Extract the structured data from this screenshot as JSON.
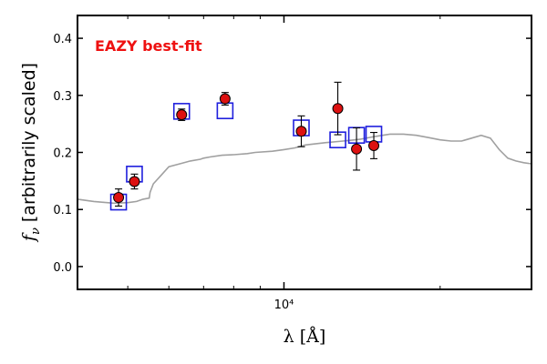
{
  "chart_data": {
    "type": "scatter",
    "x_scale": "log",
    "xlim": [
      4000,
      30000
    ],
    "ylim": [
      -0.04,
      0.44
    ],
    "x_tick_labels": [
      {
        "value": 10000,
        "label": "10⁴"
      }
    ],
    "y_tick_labels": [
      {
        "value": 0.0,
        "label": "0.0"
      },
      {
        "value": 0.1,
        "label": "0.1"
      },
      {
        "value": 0.2,
        "label": "0.2"
      },
      {
        "value": 0.3,
        "label": "0.3"
      },
      {
        "value": 0.4,
        "label": "0.4"
      }
    ],
    "xlabel": "λ [Å]",
    "ylabel_symbol": "f",
    "ylabel_subscript": "ν",
    "ylabel_text": " [arbitrarily scaled]",
    "annotation": {
      "text": "EAZY best-fit",
      "color": "#ee1111"
    },
    "grid": false,
    "series": [
      {
        "kind": "model_spectrum",
        "color": "#a0a0a0",
        "x": [
          4000,
          4300,
          4700,
          5000,
          5200,
          5350,
          5500,
          5520,
          5600,
          5800,
          6000,
          6300,
          6600,
          6900,
          7000,
          7200,
          7600,
          8000,
          8500,
          8800,
          9500,
          10000,
          10500,
          11000,
          12000,
          13000,
          14000,
          15000,
          16000,
          17000,
          18000,
          19000,
          20000,
          21000,
          22000,
          23000,
          24000,
          25000,
          26000,
          27000,
          28000,
          29000,
          30000
        ],
        "y": [
          0.118,
          0.114,
          0.111,
          0.112,
          0.114,
          0.118,
          0.12,
          0.13,
          0.145,
          0.16,
          0.175,
          0.18,
          0.185,
          0.188,
          0.19,
          0.192,
          0.195,
          0.196,
          0.198,
          0.2,
          0.202,
          0.205,
          0.208,
          0.213,
          0.217,
          0.22,
          0.223,
          0.228,
          0.232,
          0.232,
          0.23,
          0.226,
          0.222,
          0.22,
          0.22,
          0.225,
          0.23,
          0.225,
          0.205,
          0.19,
          0.185,
          0.182,
          0.18
        ]
      },
      {
        "kind": "model_photometry",
        "marker": "open-square",
        "color": "#1f1fdd",
        "x": [
          4800,
          5150,
          6350,
          7700,
          10800,
          12700,
          13800,
          14900
        ],
        "y": [
          0.113,
          0.162,
          0.272,
          0.273,
          0.243,
          0.222,
          0.23,
          0.232
        ]
      },
      {
        "kind": "observed_photometry",
        "marker": "filled-circle",
        "color": "#dd1111",
        "x": [
          4800,
          5150,
          6350,
          7700,
          10800,
          12700,
          13800,
          14900
        ],
        "y": [
          0.121,
          0.149,
          0.266,
          0.294,
          0.237,
          0.277,
          0.206,
          0.212
        ],
        "err": [
          0.015,
          0.013,
          0.01,
          0.011,
          0.027,
          0.046,
          0.037,
          0.023
        ]
      }
    ]
  }
}
